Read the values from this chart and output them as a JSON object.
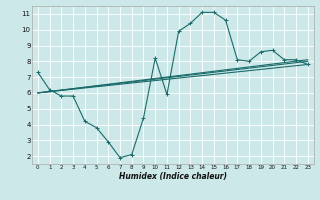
{
  "xlabel": "Humidex (Indice chaleur)",
  "background_color": "#cce8e8",
  "grid_color": "#ffffff",
  "line_color": "#1a6b6b",
  "xlim": [
    -0.5,
    23.5
  ],
  "ylim": [
    1.5,
    11.5
  ],
  "xticks": [
    0,
    1,
    2,
    3,
    4,
    5,
    6,
    7,
    8,
    9,
    10,
    11,
    12,
    13,
    14,
    15,
    16,
    17,
    18,
    19,
    20,
    21,
    22,
    23
  ],
  "yticks": [
    2,
    3,
    4,
    5,
    6,
    7,
    8,
    9,
    10,
    11
  ],
  "series": [
    {
      "x": [
        0,
        1,
        2,
        3,
        4,
        5,
        6,
        7,
        8,
        9,
        10,
        11,
        12,
        13,
        14,
        15,
        16,
        17,
        18,
        19,
        20,
        21,
        22,
        23
      ],
      "y": [
        7.3,
        6.2,
        5.8,
        5.8,
        4.2,
        3.8,
        2.9,
        1.9,
        2.1,
        4.4,
        8.2,
        5.9,
        9.9,
        10.4,
        11.1,
        11.1,
        10.6,
        8.1,
        8.0,
        8.6,
        8.7,
        8.1,
        8.1,
        7.8
      ],
      "marker": true
    },
    {
      "x": [
        0,
        23
      ],
      "y": [
        6.0,
        8.0
      ],
      "marker": false
    },
    {
      "x": [
        0,
        23
      ],
      "y": [
        6.0,
        8.1
      ],
      "marker": false
    },
    {
      "x": [
        0,
        23
      ],
      "y": [
        6.0,
        7.8
      ],
      "marker": false
    }
  ],
  "figsize": [
    3.2,
    2.0
  ],
  "dpi": 100
}
